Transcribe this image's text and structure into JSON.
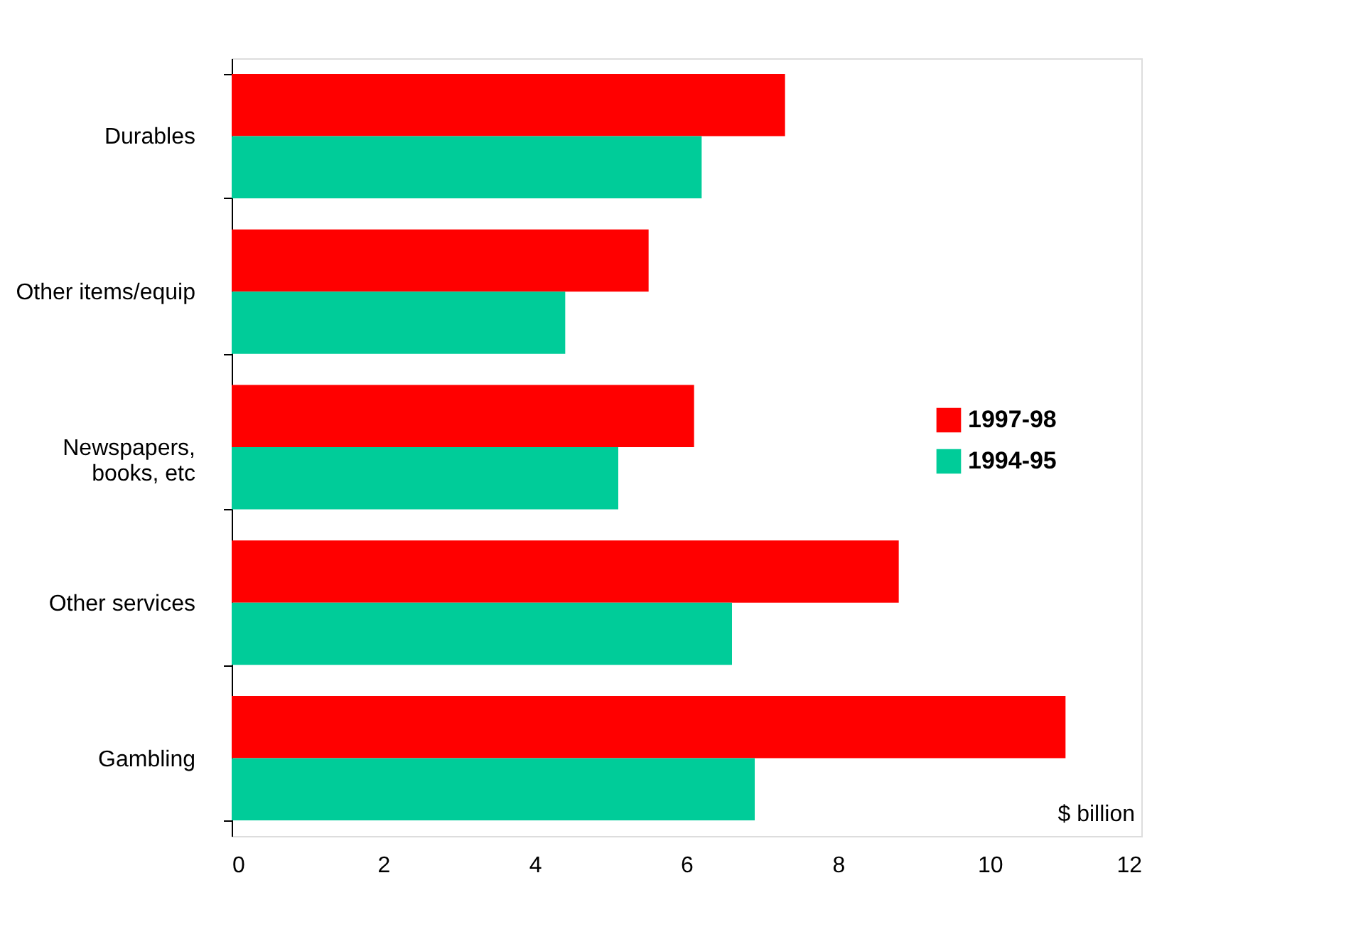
{
  "chart_data": {
    "type": "bar",
    "orientation": "horizontal",
    "xlabel": "$ billion",
    "categories": [
      "Durables",
      "Other items/equip",
      "Newspapers,\nbooks, etc",
      "Other services",
      "Gambling"
    ],
    "series": [
      {
        "name": "1997-98",
        "color": "#ff0000",
        "values": [
          7.3,
          5.5,
          6.1,
          8.8,
          11.0
        ]
      },
      {
        "name": "1994-95",
        "color": "#00cc99",
        "values": [
          6.2,
          4.4,
          5.1,
          6.6,
          6.9
        ]
      }
    ],
    "xlim": [
      0,
      12
    ],
    "xticks": [
      0,
      2,
      4,
      6,
      8,
      10,
      12
    ],
    "grid": false,
    "legend": "right"
  }
}
